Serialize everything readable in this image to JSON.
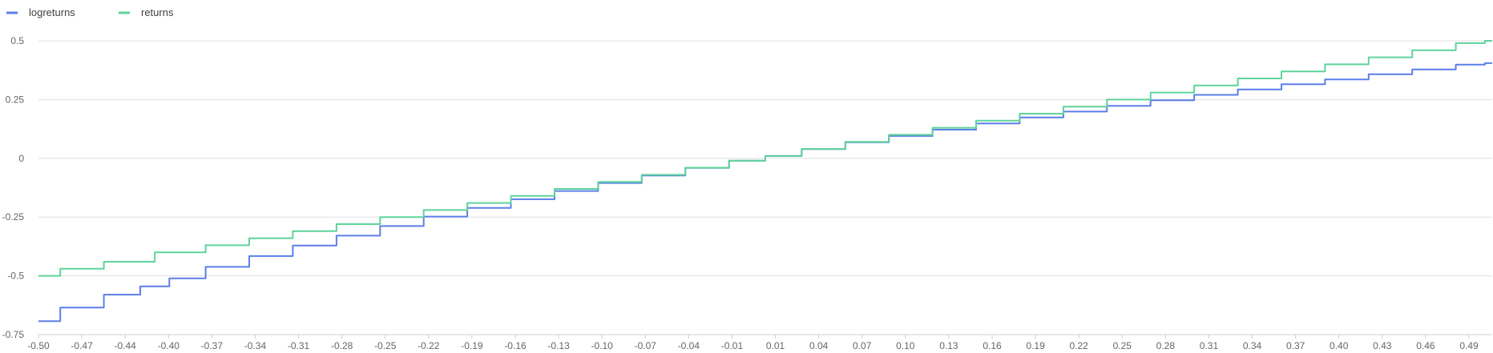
{
  "chart_data": {
    "type": "line",
    "title": "",
    "xlabel": "",
    "ylabel": "",
    "xlim": [
      -0.5,
      0.5
    ],
    "ylim": [
      -0.75,
      0.5
    ],
    "grid": "horizontal",
    "legend_position": "top-left",
    "x_tick_labels": [
      "-0.50",
      "-0.47",
      "-0.44",
      "-0.40",
      "-0.37",
      "-0.34",
      "-0.31",
      "-0.28",
      "-0.25",
      "-0.22",
      "-0.19",
      "-0.16",
      "-0.13",
      "-0.10",
      "-0.07",
      "-0.04",
      "-0.01",
      "0.01",
      "0.04",
      "0.07",
      "0.10",
      "0.13",
      "0.16",
      "0.19",
      "0.22",
      "0.25",
      "0.28",
      "0.31",
      "0.34",
      "0.37",
      "0.40",
      "0.43",
      "0.46",
      "0.49"
    ],
    "y_ticks": [
      {
        "value": 0.5,
        "label": "0.5"
      },
      {
        "value": 0.25,
        "label": "0.25"
      },
      {
        "value": 0,
        "label": "0"
      },
      {
        "value": -0.25,
        "label": "-0.25"
      },
      {
        "value": -0.5,
        "label": "-0.5"
      },
      {
        "value": -0.75,
        "label": "-0.75"
      }
    ],
    "series": [
      {
        "name": "logreturns",
        "color": "#5b7fe8",
        "points": [
          [
            -0.5,
            -0.693
          ],
          [
            -0.47,
            -0.635
          ],
          [
            -0.44,
            -0.58
          ],
          [
            -0.42,
            -0.545
          ],
          [
            -0.4,
            -0.511
          ],
          [
            -0.37,
            -0.462
          ],
          [
            -0.34,
            -0.416
          ],
          [
            -0.31,
            -0.371
          ],
          [
            -0.28,
            -0.329
          ],
          [
            -0.25,
            -0.288
          ],
          [
            -0.22,
            -0.248
          ],
          [
            -0.19,
            -0.211
          ],
          [
            -0.16,
            -0.174
          ],
          [
            -0.13,
            -0.139
          ],
          [
            -0.1,
            -0.105
          ],
          [
            -0.07,
            -0.073
          ],
          [
            -0.04,
            -0.041
          ],
          [
            -0.01,
            -0.01
          ],
          [
            0.01,
            0.01
          ],
          [
            0.04,
            0.039
          ],
          [
            0.07,
            0.068
          ],
          [
            0.1,
            0.095
          ],
          [
            0.13,
            0.122
          ],
          [
            0.16,
            0.148
          ],
          [
            0.19,
            0.174
          ],
          [
            0.22,
            0.199
          ],
          [
            0.25,
            0.223
          ],
          [
            0.28,
            0.247
          ],
          [
            0.31,
            0.27
          ],
          [
            0.34,
            0.293
          ],
          [
            0.37,
            0.315
          ],
          [
            0.4,
            0.336
          ],
          [
            0.43,
            0.358
          ],
          [
            0.46,
            0.378
          ],
          [
            0.49,
            0.399
          ],
          [
            0.5,
            0.405
          ]
        ]
      },
      {
        "name": "returns",
        "color": "#5fd39a",
        "points": [
          [
            -0.5,
            -0.5
          ],
          [
            -0.47,
            -0.47
          ],
          [
            -0.44,
            -0.44
          ],
          [
            -0.4,
            -0.4
          ],
          [
            -0.37,
            -0.37
          ],
          [
            -0.34,
            -0.34
          ],
          [
            -0.31,
            -0.31
          ],
          [
            -0.28,
            -0.28
          ],
          [
            -0.25,
            -0.25
          ],
          [
            -0.22,
            -0.22
          ],
          [
            -0.19,
            -0.19
          ],
          [
            -0.16,
            -0.16
          ],
          [
            -0.13,
            -0.13
          ],
          [
            -0.1,
            -0.1
          ],
          [
            -0.07,
            -0.07
          ],
          [
            -0.04,
            -0.04
          ],
          [
            -0.01,
            -0.01
          ],
          [
            0.01,
            0.01
          ],
          [
            0.04,
            0.04
          ],
          [
            0.07,
            0.07
          ],
          [
            0.1,
            0.1
          ],
          [
            0.13,
            0.13
          ],
          [
            0.16,
            0.16
          ],
          [
            0.19,
            0.19
          ],
          [
            0.22,
            0.22
          ],
          [
            0.25,
            0.25
          ],
          [
            0.28,
            0.28
          ],
          [
            0.31,
            0.31
          ],
          [
            0.34,
            0.34
          ],
          [
            0.37,
            0.37
          ],
          [
            0.4,
            0.4
          ],
          [
            0.43,
            0.43
          ],
          [
            0.46,
            0.46
          ],
          [
            0.49,
            0.49
          ],
          [
            0.5,
            0.5
          ]
        ]
      }
    ]
  }
}
